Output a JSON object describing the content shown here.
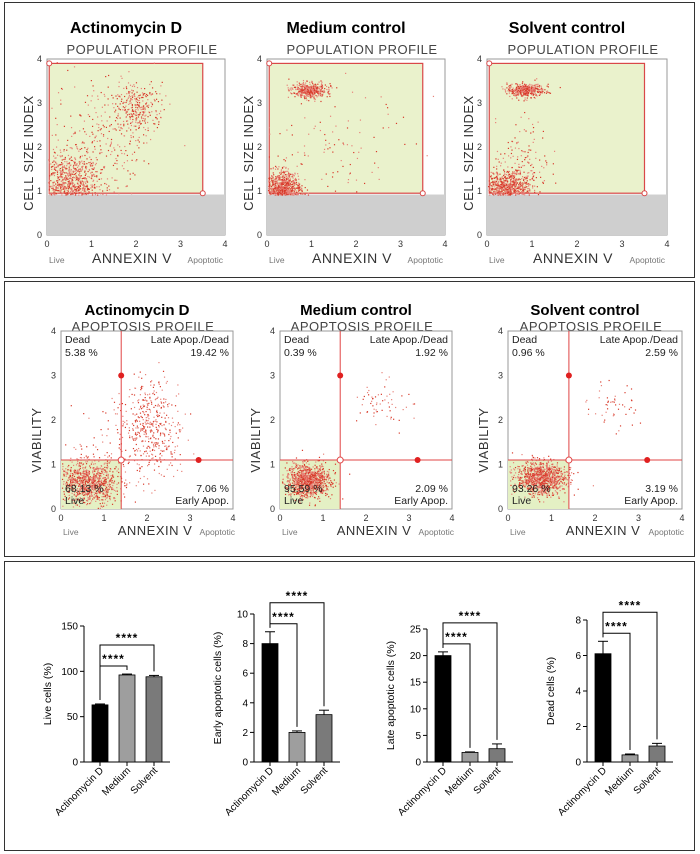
{
  "population_profiles": [
    {
      "condition": "Actinomycin D",
      "title": "POPULATION PROFILE",
      "xlabel": "ANNEXIN V",
      "ylabel": "CELL SIZE INDEX",
      "left_label": "Live",
      "right_label": "Apoptotic",
      "xticks": [
        "0",
        "1",
        "2",
        "3",
        "4"
      ],
      "yticks": [
        "0",
        "1",
        "2",
        "3",
        "4"
      ],
      "clusters": [
        {
          "cx": 0.45,
          "cy": 1.15,
          "sx": 0.35,
          "sy": 0.35,
          "n": 900
        },
        {
          "cx": 2.0,
          "cy": 2.9,
          "sx": 0.3,
          "sy": 0.3,
          "n": 300
        },
        {
          "cx": 1.2,
          "cy": 2.0,
          "sx": 0.6,
          "sy": 0.7,
          "n": 250
        }
      ]
    },
    {
      "condition": "Medium control",
      "title": "POPULATION PROFILE",
      "xlabel": "ANNEXIN V",
      "ylabel": "CELL SIZE INDEX",
      "left_label": "Live",
      "right_label": "Apoptotic",
      "xticks": [
        "0",
        "1",
        "2",
        "3",
        "4"
      ],
      "yticks": [
        "0",
        "1",
        "2",
        "3",
        "4"
      ],
      "clusters": [
        {
          "cx": 0.35,
          "cy": 1.05,
          "sx": 0.2,
          "sy": 0.2,
          "n": 900
        },
        {
          "cx": 0.95,
          "cy": 3.3,
          "sx": 0.2,
          "sy": 0.08,
          "n": 400
        },
        {
          "cx": 1.5,
          "cy": 2.0,
          "sx": 0.8,
          "sy": 0.9,
          "n": 120
        }
      ]
    },
    {
      "condition": "Solvent control",
      "title": "POPULATION PROFILE",
      "xlabel": "ANNEXIN V",
      "ylabel": "CELL SIZE INDEX",
      "left_label": "Live",
      "right_label": "Apoptotic",
      "xticks": [
        "0",
        "1",
        "2",
        "3",
        "4"
      ],
      "yticks": [
        "0",
        "1",
        "2",
        "3",
        "4"
      ],
      "clusters": [
        {
          "cx": 0.45,
          "cy": 1.05,
          "sx": 0.25,
          "sy": 0.2,
          "n": 800
        },
        {
          "cx": 0.85,
          "cy": 3.3,
          "sx": 0.2,
          "sy": 0.08,
          "n": 400
        },
        {
          "cx": 0.8,
          "cy": 1.6,
          "sx": 0.3,
          "sy": 0.5,
          "n": 150
        }
      ]
    }
  ],
  "apoptosis_profiles": [
    {
      "condition": "Actinomycin D",
      "title": "APOPTOSIS PROFILE",
      "xlabel": "ANNEXIN V",
      "ylabel": "VIABILITY",
      "left_label": "Live",
      "right_label": "Apoptotic",
      "xticks": [
        "0",
        "1",
        "2",
        "3",
        "4"
      ],
      "yticks": [
        "0",
        "1",
        "2",
        "3",
        "4"
      ],
      "quadrants": {
        "dead_label": "Dead",
        "dead_pct": "5.38 %",
        "late_label": "Late Apop./Dead",
        "late_pct": "19.42 %",
        "live_label": "Live",
        "live_pct": "68.13 %",
        "early_label": "Early Apop.",
        "early_pct": "7.06 %"
      },
      "clusters": [
        {
          "cx": 0.6,
          "cy": 0.6,
          "sx": 0.35,
          "sy": 0.25,
          "n": 900
        },
        {
          "cx": 2.1,
          "cy": 1.9,
          "sx": 0.35,
          "sy": 0.5,
          "n": 350
        },
        {
          "cx": 1.5,
          "cy": 1.5,
          "sx": 0.6,
          "sy": 0.6,
          "n": 150
        }
      ]
    },
    {
      "condition": "Medium control",
      "title": "APOPTOSIS PROFILE",
      "xlabel": "ANNEXIN V",
      "ylabel": "VIABILITY",
      "left_label": "Live",
      "right_label": "Apoptotic",
      "xticks": [
        "0",
        "1",
        "2",
        "3",
        "4"
      ],
      "yticks": [
        "0",
        "1",
        "2",
        "3",
        "4"
      ],
      "quadrants": {
        "dead_label": "Dead",
        "dead_pct": "0.39 %",
        "late_label": "Late Apop./Dead",
        "late_pct": "1.92 %",
        "live_label": "Live",
        "live_pct": "95.59 %",
        "early_label": "Early Apop.",
        "early_pct": "2.09 %"
      },
      "clusters": [
        {
          "cx": 0.65,
          "cy": 0.65,
          "sx": 0.25,
          "sy": 0.18,
          "n": 1000
        },
        {
          "cx": 2.3,
          "cy": 2.4,
          "sx": 0.3,
          "sy": 0.3,
          "n": 60
        }
      ]
    },
    {
      "condition": "Solvent control",
      "title": "APOPTOSIS PROFILE",
      "xlabel": "ANNEXIN V",
      "ylabel": "VIABILITY",
      "left_label": "Live",
      "right_label": "Apoptotic",
      "xticks": [
        "0",
        "1",
        "2",
        "3",
        "4"
      ],
      "yticks": [
        "0",
        "1",
        "2",
        "3",
        "4"
      ],
      "quadrants": {
        "dead_label": "Dead",
        "dead_pct": "0.96 %",
        "late_label": "Late Apop./Dead",
        "late_pct": "2.59 %",
        "live_label": "Live",
        "live_pct": "93.26 %",
        "early_label": "Early Apop.",
        "early_pct": "3.19 %"
      },
      "clusters": [
        {
          "cx": 0.75,
          "cy": 0.7,
          "sx": 0.28,
          "sy": 0.18,
          "n": 1000
        },
        {
          "cx": 2.4,
          "cy": 2.3,
          "sx": 0.3,
          "sy": 0.3,
          "n": 50
        }
      ]
    }
  ],
  "chart_data": [
    {
      "type": "bar",
      "ylabel": "Live cells (%)",
      "categories": [
        "Actinomycin D",
        "Medium",
        "Solvent"
      ],
      "values": [
        63,
        96,
        94
      ],
      "errors": [
        1,
        1,
        1.5
      ],
      "ylim": [
        0,
        150
      ],
      "yticks": [
        "0",
        "50",
        "100",
        "150"
      ],
      "significance": [
        {
          "from": 0,
          "to": 1,
          "label": "****"
        },
        {
          "from": 0,
          "to": 2,
          "label": "****"
        }
      ],
      "colors": [
        "#000000",
        "#9e9e9e",
        "#7a7a7a"
      ]
    },
    {
      "type": "bar",
      "ylabel": "Early apoptotic cells (%)",
      "categories": [
        "Actinomycin D",
        "Medium",
        "Solvent"
      ],
      "values": [
        8.0,
        2.0,
        3.2
      ],
      "errors": [
        0.8,
        0.1,
        0.3
      ],
      "ylim": [
        0,
        10
      ],
      "yticks": [
        "0",
        "2",
        "4",
        "6",
        "8",
        "10"
      ],
      "significance": [
        {
          "from": 0,
          "to": 1,
          "label": "****"
        },
        {
          "from": 0,
          "to": 2,
          "label": "****"
        }
      ],
      "colors": [
        "#000000",
        "#9e9e9e",
        "#7a7a7a"
      ]
    },
    {
      "type": "bar",
      "ylabel": "Late apoptotic cells (%)",
      "categories": [
        "Actinomycin D",
        "Medium",
        "Solvent"
      ],
      "values": [
        20.0,
        1.8,
        2.5
      ],
      "errors": [
        0.7,
        0.1,
        0.9
      ],
      "ylim": [
        0,
        25
      ],
      "yticks": [
        "0",
        "5",
        "10",
        "15",
        "20",
        "25"
      ],
      "significance": [
        {
          "from": 0,
          "to": 1,
          "label": "****"
        },
        {
          "from": 0,
          "to": 2,
          "label": "****"
        }
      ],
      "colors": [
        "#000000",
        "#9e9e9e",
        "#7a7a7a"
      ]
    },
    {
      "type": "bar",
      "ylabel": "Dead cells (%)",
      "categories": [
        "Actinomycin D",
        "Medium",
        "Solvent"
      ],
      "values": [
        6.1,
        0.4,
        0.9
      ],
      "errors": [
        0.7,
        0.05,
        0.15
      ],
      "ylim": [
        0,
        8
      ],
      "yticks": [
        "0",
        "2",
        "4",
        "6",
        "8"
      ],
      "significance": [
        {
          "from": 0,
          "to": 1,
          "label": "****"
        },
        {
          "from": 0,
          "to": 2,
          "label": "****"
        }
      ],
      "colors": [
        "#000000",
        "#9e9e9e",
        "#7a7a7a"
      ]
    }
  ]
}
